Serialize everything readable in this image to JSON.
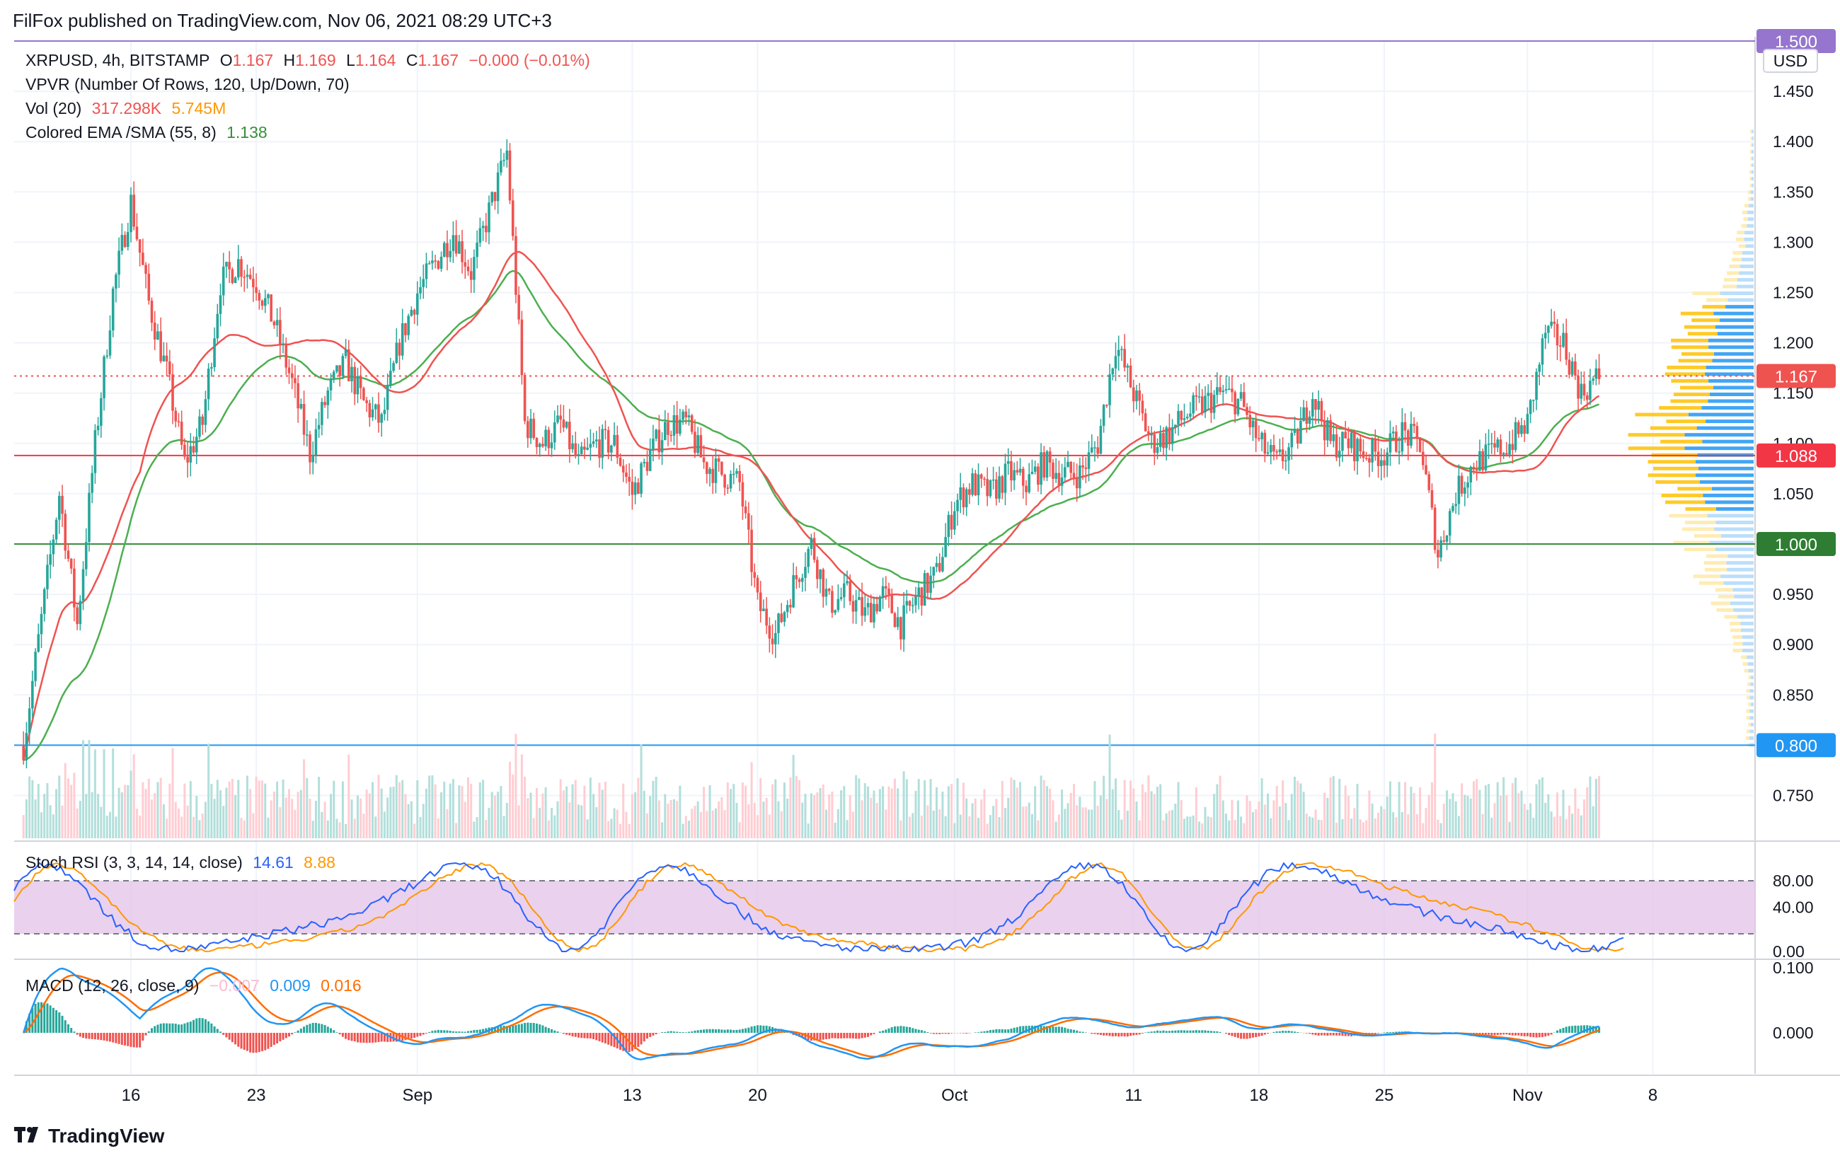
{
  "header": {
    "published": "FilFox published on TradingView.com, Nov 06, 2021 08:29 UTC+3"
  },
  "legend": {
    "symbol": "XRPUSD, 4h, BITSTAMP",
    "o_label": "O",
    "o": "1.167",
    "h_label": "H",
    "h": "1.169",
    "l_label": "L",
    "l": "1.164",
    "c_label": "C",
    "c": "1.167",
    "chg": "−0.000 (−0.01%)",
    "vpvr": "VPVR (Number Of Rows, 120, Up/Down, 70)",
    "vol_label": "Vol (20)",
    "vol_val": "317.298K",
    "vol_ma": "5.745M",
    "ema_label": "Colored EMA /SMA (55, 8)",
    "ema_val": "1.138"
  },
  "stoch_legend": {
    "label": "Stoch RSI (3, 3, 14, 14, close)",
    "k": "14.61",
    "d": "8.88"
  },
  "macd_legend": {
    "label": "MACD (12, 26, close, 9)",
    "hist": "−0.007",
    "macd": "0.009",
    "signal": "0.016"
  },
  "footer": {
    "brand": "TradingView"
  },
  "colors": {
    "up": "#26a69a",
    "down": "#ef5350",
    "ema": "#ef5350",
    "sma": "#4caf50",
    "stoch_bg": "#e1bee7",
    "k": "#2962ff",
    "d": "#ff9800"
  },
  "chart_data": {
    "type": "candlestick",
    "symbol": "XRPUSD",
    "timeframe": "4h",
    "exchange": "BITSTAMP",
    "currency": "USD",
    "ylim": [
      0.7,
      1.5
    ],
    "y_ticks": [
      "1.450",
      "1.400",
      "1.350",
      "1.300",
      "1.250",
      "1.200",
      "1.150",
      "1.100",
      "1.050",
      "0.950",
      "0.900",
      "0.850",
      "0.750"
    ],
    "x_ticks": [
      "16",
      "23",
      "Sep",
      "13",
      "20",
      "Oct",
      "11",
      "18",
      "25",
      "Nov",
      "8"
    ],
    "price_labels": [
      {
        "text": "1.500",
        "value": 1.5,
        "color": "#9575cd"
      },
      {
        "text": "1.167",
        "value": 1.167,
        "color": "#ef5350"
      },
      {
        "text": "1.088",
        "value": 1.088,
        "color": "#f23645"
      },
      {
        "text": "1.000",
        "value": 1.0,
        "color": "#2e7d32"
      },
      {
        "text": "0.800",
        "value": 0.8,
        "color": "#2196f3"
      }
    ],
    "horizontal_levels": [
      {
        "value": 1.5,
        "color": "#9575cd"
      },
      {
        "value": 1.088,
        "color": "#f23645"
      },
      {
        "value": 1.0,
        "color": "#388e3c"
      },
      {
        "value": 0.8,
        "color": "#2196f3"
      }
    ],
    "approx_close_path": [
      [
        "Aug 10",
        0.8
      ],
      [
        "Aug 12",
        1.05
      ],
      [
        "Aug 13",
        0.92
      ],
      [
        "Aug 14",
        1.1
      ],
      [
        "Aug 15",
        1.25
      ],
      [
        "Aug 16",
        1.34
      ],
      [
        "Aug 17",
        1.24
      ],
      [
        "Aug 18",
        1.17
      ],
      [
        "Aug 19",
        1.08
      ],
      [
        "Aug 20",
        1.12
      ],
      [
        "Aug 21",
        1.26
      ],
      [
        "Aug 22",
        1.28
      ],
      [
        "Aug 23",
        1.26
      ],
      [
        "Aug 24",
        1.22
      ],
      [
        "Aug 25",
        1.16
      ],
      [
        "Aug 26",
        1.09
      ],
      [
        "Aug 27",
        1.15
      ],
      [
        "Aug 28",
        1.18
      ],
      [
        "Aug 29",
        1.14
      ],
      [
        "Aug 30",
        1.12
      ],
      [
        "Aug 31",
        1.2
      ],
      [
        "Sep 1",
        1.25
      ],
      [
        "Sep 2",
        1.28
      ],
      [
        "Sep 3",
        1.31
      ],
      [
        "Sep 4",
        1.27
      ],
      [
        "Sep 5",
        1.33
      ],
      [
        "Sep 6",
        1.39
      ],
      [
        "Sep 7",
        1.12
      ],
      [
        "Sep 8",
        1.1
      ],
      [
        "Sep 9",
        1.12
      ],
      [
        "Sep 10",
        1.08
      ],
      [
        "Sep 11",
        1.1
      ],
      [
        "Sep 12",
        1.1
      ],
      [
        "Sep 13",
        1.05
      ],
      [
        "Sep 14",
        1.09
      ],
      [
        "Sep 15",
        1.12
      ],
      [
        "Sep 16",
        1.12
      ],
      [
        "Sep 17",
        1.08
      ],
      [
        "Sep 18",
        1.07
      ],
      [
        "Sep 19",
        1.06
      ],
      [
        "Sep 20",
        0.94
      ],
      [
        "Sep 21",
        0.91
      ],
      [
        "Sep 22",
        0.96
      ],
      [
        "Sep 23",
        1.0
      ],
      [
        "Sep 24",
        0.94
      ],
      [
        "Sep 25",
        0.95
      ],
      [
        "Sep 26",
        0.93
      ],
      [
        "Sep 27",
        0.95
      ],
      [
        "Sep 28",
        0.92
      ],
      [
        "Sep 29",
        0.95
      ],
      [
        "Sep 30",
        0.97
      ],
      [
        "Oct 1",
        1.04
      ],
      [
        "Oct 2",
        1.06
      ],
      [
        "Oct 3",
        1.05
      ],
      [
        "Oct 4",
        1.07
      ],
      [
        "Oct 5",
        1.06
      ],
      [
        "Oct 6",
        1.08
      ],
      [
        "Oct 7",
        1.07
      ],
      [
        "Oct 8",
        1.07
      ],
      [
        "Oct 9",
        1.1
      ],
      [
        "Oct 10",
        1.2
      ],
      [
        "Oct 11",
        1.15
      ],
      [
        "Oct 12",
        1.1
      ],
      [
        "Oct 13",
        1.11
      ],
      [
        "Oct 14",
        1.13
      ],
      [
        "Oct 15",
        1.14
      ],
      [
        "Oct 16",
        1.15
      ],
      [
        "Oct 17",
        1.14
      ],
      [
        "Oct 18",
        1.1
      ],
      [
        "Oct 19",
        1.08
      ],
      [
        "Oct 20",
        1.1
      ],
      [
        "Oct 21",
        1.15
      ],
      [
        "Oct 22",
        1.1
      ],
      [
        "Oct 23",
        1.1
      ],
      [
        "Oct 24",
        1.09
      ],
      [
        "Oct 25",
        1.09
      ],
      [
        "Oct 26",
        1.11
      ],
      [
        "Oct 27",
        1.1
      ],
      [
        "Oct 28",
        0.99
      ],
      [
        "Oct 29",
        1.05
      ],
      [
        "Oct 30",
        1.08
      ],
      [
        "Oct 31",
        1.09
      ],
      [
        "Nov 1",
        1.1
      ],
      [
        "Nov 2",
        1.12
      ],
      [
        "Nov 3",
        1.21
      ],
      [
        "Nov 4",
        1.2
      ],
      [
        "Nov 5",
        1.15
      ],
      [
        "Nov 6",
        1.167
      ]
    ],
    "stoch_rsi": {
      "ylim": [
        0,
        100
      ],
      "y_ticks": [
        "80.00",
        "40.00",
        "0.00"
      ],
      "bands": [
        20,
        80
      ],
      "k": 14.61,
      "d": 8.88
    },
    "macd": {
      "y_ticks": [
        "0.100",
        "0.000"
      ],
      "hist": -0.007,
      "macd": 0.009,
      "signal": 0.016
    },
    "grid": true
  }
}
